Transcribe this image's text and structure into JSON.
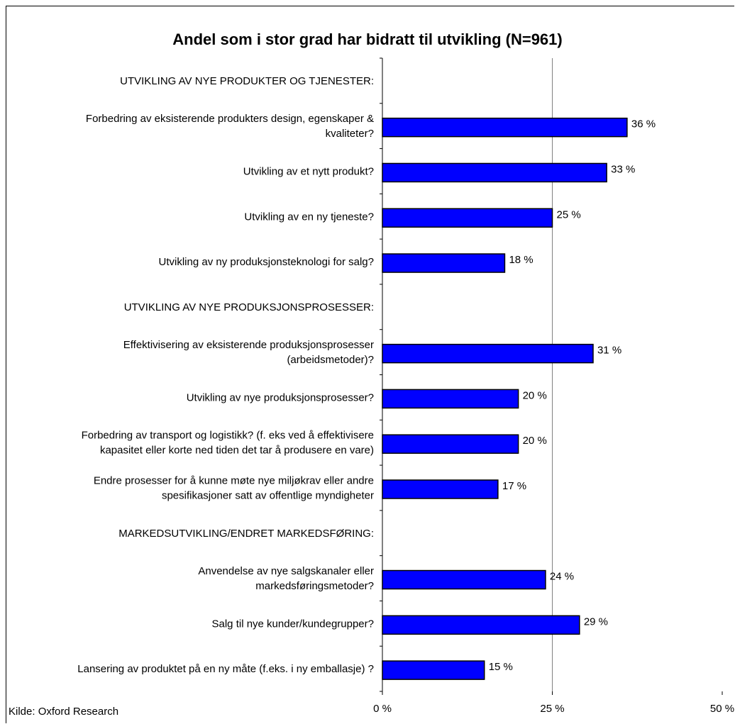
{
  "chart_data": {
    "type": "bar",
    "orientation": "horizontal",
    "title": "Andel som i stor grad har bidratt til utvikling (N=961)",
    "source": "Kilde: Oxford Research",
    "xlim": [
      0,
      50
    ],
    "x_ticks": [
      0,
      25,
      50
    ],
    "x_tick_labels": [
      "0 %",
      "25 %",
      "50 %"
    ],
    "gridlines": [
      25
    ],
    "bar_color": "#0000ff",
    "bar_border_color": "#000000",
    "rows": [
      {
        "lines": [
          "UTVIKLING AV NYE PRODUKTER OG TJENESTER:"
        ],
        "value": null,
        "value_label": "",
        "heading": true
      },
      {
        "lines": [
          "Forbedring av eksisterende produkters design, egenskaper &",
          "kvaliteter?"
        ],
        "value": 36,
        "value_label": "36 %"
      },
      {
        "lines": [
          "Utvikling av et nytt produkt?"
        ],
        "value": 33,
        "value_label": "33 %"
      },
      {
        "lines": [
          "Utvikling av en ny tjeneste?"
        ],
        "value": 25,
        "value_label": "25 %"
      },
      {
        "lines": [
          "Utvikling av ny produksjonsteknologi for salg?"
        ],
        "value": 18,
        "value_label": "18 %"
      },
      {
        "lines": [
          "UTVIKLING AV NYE PRODUKSJONSPROSESSER:"
        ],
        "value": null,
        "value_label": "",
        "heading": true
      },
      {
        "lines": [
          "Effektivisering av eksisterende produksjonsprosesser",
          "(arbeidsmetoder)?"
        ],
        "value": 31,
        "value_label": "31 %"
      },
      {
        "lines": [
          "Utvikling av nye produksjonsprosesser?"
        ],
        "value": 20,
        "value_label": "20 %"
      },
      {
        "lines": [
          "Forbedring av transport og logistikk? (f. eks ved å effektivisere",
          "kapasitet eller korte ned tiden det tar å produsere en vare)"
        ],
        "value": 20,
        "value_label": "20 %"
      },
      {
        "lines": [
          "Endre prosesser for å kunne møte nye miljøkrav eller andre",
          "spesifikasjoner satt av offentlige myndigheter"
        ],
        "value": 17,
        "value_label": "17 %"
      },
      {
        "lines": [
          "MARKEDSUTVIKLING/ENDRET MARKEDSFØRING:"
        ],
        "value": null,
        "value_label": "",
        "heading": true
      },
      {
        "lines": [
          "Anvendelse av nye salgskanaler eller",
          "markedsføringsmetoder?"
        ],
        "value": 24,
        "value_label": "24 %"
      },
      {
        "lines": [
          "Salg til nye kunder/kundegrupper?"
        ],
        "value": 29,
        "value_label": "29 %"
      },
      {
        "lines": [
          "Lansering av produktet på en ny måte (f.eks. i ny emballasje) ?"
        ],
        "value": 15,
        "value_label": "15 %"
      }
    ]
  }
}
